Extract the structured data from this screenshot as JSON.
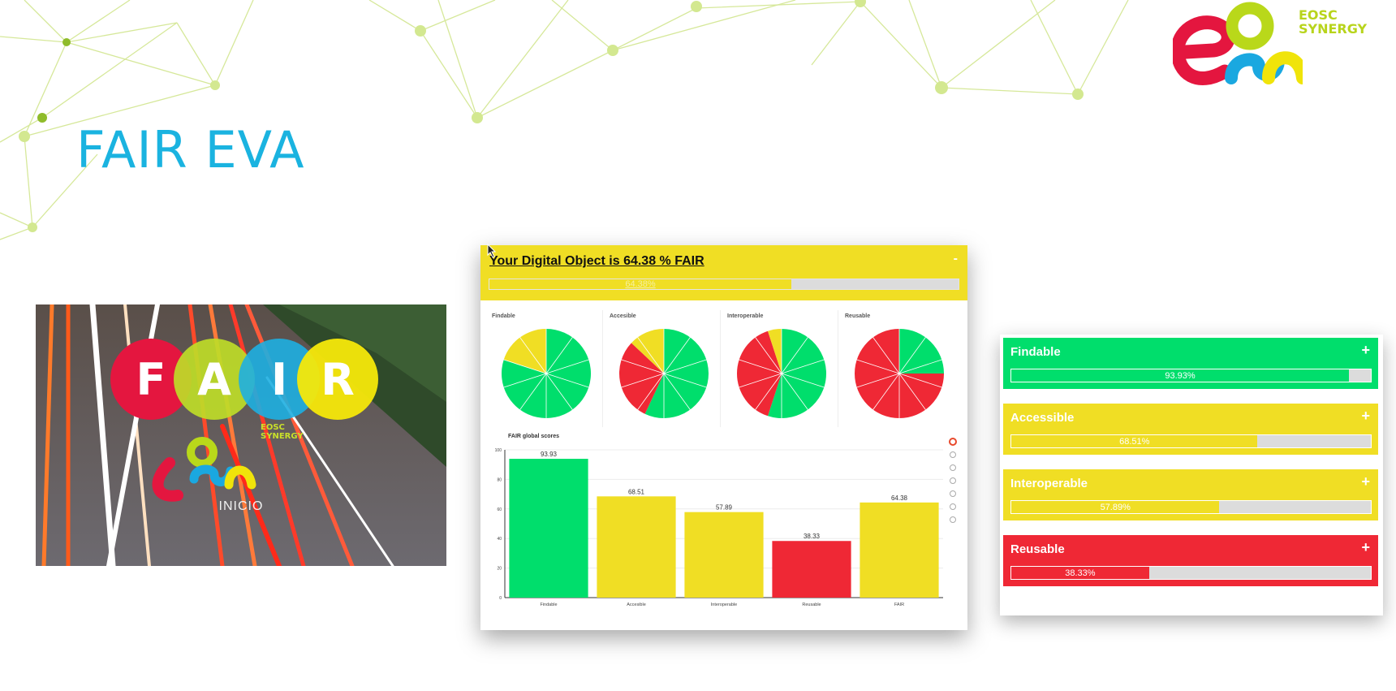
{
  "slide": {
    "title": "FAIR EVA",
    "logo_text": [
      "EOSC",
      "SYNERGY"
    ]
  },
  "colors": {
    "findable": "#00de6c",
    "accessible": "#f0de24",
    "interoperable": "#f0de24",
    "reusable": "#ef2835",
    "title_blue": "#1ab3e0"
  },
  "video": {
    "letters": [
      "F",
      "A",
      "I",
      "R"
    ],
    "logo_text": [
      "EOSC",
      "SYNERGY"
    ],
    "caption": "INICIO"
  },
  "result": {
    "title": "Your Digital Object is 64.38 % FAIR",
    "collapse": "-",
    "percent": 64.38,
    "percent_label": "64.38%"
  },
  "pies": [
    {
      "label": "Findable",
      "green_fraction": 0.8,
      "yellow_fraction": 0.2,
      "red_fraction": 0
    },
    {
      "label": "Accesible",
      "green_fraction": 0.57,
      "yellow_fraction": 0.13,
      "red_fraction": 0.3
    },
    {
      "label": "Interoperable",
      "green_fraction": 0.55,
      "yellow_fraction": 0.05,
      "red_fraction": 0.4
    },
    {
      "label": "Reusable",
      "green_fraction": 0.25,
      "yellow_fraction": 0,
      "red_fraction": 0.75
    }
  ],
  "chart_data": {
    "type": "bar",
    "title": "FAIR global scores",
    "categories": [
      "Findable",
      "Accesible",
      "Interoperable",
      "Reusable",
      "FAIR"
    ],
    "values": [
      93.93,
      68.51,
      57.89,
      38.33,
      64.38
    ],
    "value_labels": [
      "93.93",
      "68.51",
      "57.89",
      "38.33",
      "64.38"
    ],
    "colors": [
      "#00de6c",
      "#f0de24",
      "#f0de24",
      "#ef2835",
      "#f0de24"
    ],
    "ylim": [
      0,
      100
    ],
    "yticks": [
      "0",
      "20",
      "40",
      "60",
      "80",
      "100"
    ],
    "grid": true,
    "toolbar_icons": [
      "bokeh-logo-icon",
      "pan-icon",
      "zoom-icon",
      "wheel-zoom-icon",
      "save-icon",
      "reset-icon",
      "help-icon"
    ]
  },
  "cards": [
    {
      "title": "Findable",
      "toggle": "+",
      "percent": 93.93,
      "label": "93.93%",
      "color": "#00de6c"
    },
    {
      "title": "Accessible",
      "toggle": "+",
      "percent": 68.51,
      "label": "68.51%",
      "color": "#f0de24"
    },
    {
      "title": "Interoperable",
      "toggle": "+",
      "percent": 57.89,
      "label": "57.89%",
      "color": "#f0de24"
    },
    {
      "title": "Reusable",
      "toggle": "+",
      "percent": 38.33,
      "label": "38.33%",
      "color": "#ef2835"
    }
  ]
}
